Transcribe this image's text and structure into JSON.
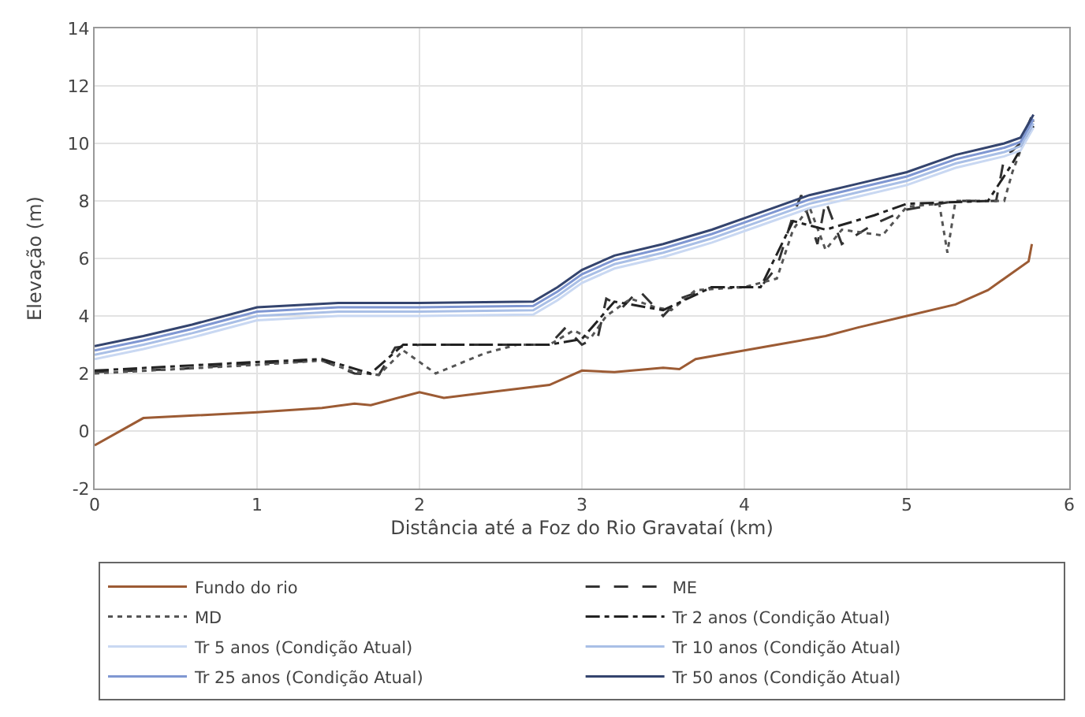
{
  "chart_data": {
    "type": "line",
    "xlabel": "Distância até a Foz do Rio Gravataí (km)",
    "ylabel": "Elevação (m)",
    "xlim": [
      0,
      6
    ],
    "xticks": [
      0,
      1,
      2,
      3,
      4,
      5,
      6
    ],
    "ylim": [
      -2,
      14
    ],
    "yticks": [
      -2,
      0,
      2,
      4,
      6,
      8,
      10,
      12,
      14
    ],
    "grid": true,
    "legend": "bottom",
    "marker": "none",
    "series": [
      {
        "name": "Fundo do rio",
        "color": "#9c5b34",
        "line_style": "solid",
        "x": [
          0,
          0.3,
          1,
          1.4,
          1.6,
          1.7,
          2,
          2.15,
          2.5,
          2.8,
          3,
          3.2,
          3.5,
          3.6,
          3.7,
          4,
          4.2,
          4.5,
          4.7,
          5,
          5.3,
          5.5,
          5.65,
          5.75,
          5.77
        ],
        "values": [
          -0.5,
          0.45,
          0.65,
          0.8,
          0.95,
          0.9,
          1.35,
          1.15,
          1.4,
          1.6,
          2.1,
          2.05,
          2.2,
          2.15,
          2.5,
          2.8,
          3,
          3.3,
          3.6,
          4,
          4.4,
          4.9,
          5.5,
          5.9,
          6.5
        ]
      },
      {
        "name": "ME",
        "color": "#333333",
        "line_style": "dashed",
        "x": [
          0,
          0.5,
          1,
          1.4,
          1.6,
          1.75,
          1.85,
          2,
          2.5,
          2.8,
          2.9,
          3,
          3.1,
          3.15,
          3.25,
          3.35,
          3.5,
          3.6,
          3.8,
          4.1,
          4.2,
          4.3,
          4.35,
          4.45,
          4.5,
          4.6,
          4.8,
          5,
          5.3,
          5.55,
          5.6,
          5.7,
          5.78
        ],
        "values": [
          2.05,
          2.15,
          2.35,
          2.45,
          2,
          1.95,
          2.9,
          3,
          3,
          3,
          3.6,
          3,
          3.3,
          4.6,
          4.3,
          4.9,
          4,
          4.6,
          5,
          5,
          5.7,
          7.5,
          8.2,
          6.5,
          8,
          6.5,
          7.2,
          7.7,
          8,
          8,
          9.5,
          10,
          11.1
        ]
      },
      {
        "name": "MD",
        "color": "#555555",
        "line_style": "dotted",
        "x": [
          0,
          1,
          1.4,
          1.6,
          1.75,
          1.9,
          2,
          2.1,
          2.4,
          2.6,
          2.8,
          2.95,
          3.05,
          3.15,
          3.3,
          3.45,
          3.55,
          3.7,
          4,
          4.2,
          4.3,
          4.4,
          4.5,
          4.6,
          4.85,
          5,
          5.2,
          5.25,
          5.3,
          5.6,
          5.65,
          5.75,
          5.78
        ],
        "values": [
          2,
          2.3,
          2.45,
          2.05,
          1.95,
          2.8,
          2.4,
          2,
          2.7,
          3,
          3,
          3.5,
          3.2,
          4,
          4.6,
          4.3,
          4.2,
          4.9,
          5,
          5.3,
          7,
          7.8,
          6.3,
          7,
          6.8,
          7.8,
          7.9,
          6.2,
          8,
          8,
          9,
          10.5,
          10.8
        ]
      },
      {
        "name": "Tr 2 anos (Condição Atual)",
        "color": "#222222",
        "line_style": "dashdot",
        "x": [
          0,
          1,
          1.4,
          1.7,
          1.9,
          2.8,
          3,
          3.2,
          3.5,
          3.8,
          4.1,
          4.3,
          4.5,
          4.8,
          5,
          5.5,
          5.65,
          5.78
        ],
        "values": [
          2.1,
          2.4,
          2.5,
          2,
          3,
          3,
          3.2,
          4.5,
          4.2,
          5,
          5,
          7.3,
          7,
          7.5,
          7.9,
          8,
          9.3,
          10.6
        ]
      },
      {
        "name": "Tr 5 anos (Condição Atual)",
        "color": "#c9d8f2",
        "line_style": "solid",
        "x": [
          0,
          0.3,
          0.6,
          1,
          1.5,
          2,
          2.7,
          2.85,
          3,
          3.2,
          3.5,
          3.8,
          4.1,
          4.4,
          4.7,
          5,
          5.3,
          5.6,
          5.7,
          5.78
        ],
        "values": [
          2.5,
          2.85,
          3.25,
          3.85,
          4,
          4,
          4.05,
          4.55,
          5.15,
          5.65,
          6.05,
          6.55,
          7.15,
          7.75,
          8.15,
          8.55,
          9.15,
          9.55,
          9.75,
          10.55
        ]
      },
      {
        "name": "Tr 10 anos (Condição Atual)",
        "color": "#a9bfe6",
        "line_style": "solid",
        "x": [
          0,
          0.3,
          0.6,
          1,
          1.5,
          2,
          2.7,
          2.85,
          3,
          3.2,
          3.5,
          3.8,
          4.1,
          4.4,
          4.7,
          5,
          5.3,
          5.6,
          5.7,
          5.78
        ],
        "values": [
          2.65,
          3,
          3.4,
          4,
          4.15,
          4.15,
          4.2,
          4.7,
          5.3,
          5.8,
          6.2,
          6.7,
          7.3,
          7.9,
          8.3,
          8.7,
          9.3,
          9.7,
          9.9,
          10.7
        ]
      },
      {
        "name": "Tr 25 anos (Condição Atual)",
        "color": "#7f97d2",
        "line_style": "solid",
        "x": [
          0,
          0.3,
          0.6,
          1,
          1.5,
          2,
          2.7,
          2.85,
          3,
          3.2,
          3.5,
          3.8,
          4.1,
          4.4,
          4.7,
          5,
          5.3,
          5.6,
          5.7,
          5.78
        ],
        "values": [
          2.8,
          3.15,
          3.55,
          4.15,
          4.3,
          4.3,
          4.35,
          4.85,
          5.45,
          5.95,
          6.35,
          6.85,
          7.45,
          8.05,
          8.45,
          8.85,
          9.45,
          9.85,
          10.05,
          10.85
        ]
      },
      {
        "name": "Tr 50 anos (Condição Atual)",
        "color": "#34446e",
        "line_style": "solid",
        "x": [
          0,
          0.3,
          0.6,
          1,
          1.5,
          2,
          2.7,
          2.85,
          3,
          3.2,
          3.5,
          3.8,
          4.1,
          4.4,
          4.7,
          5,
          5.3,
          5.6,
          5.7,
          5.78
        ],
        "values": [
          2.95,
          3.3,
          3.7,
          4.3,
          4.45,
          4.45,
          4.5,
          5,
          5.6,
          6.1,
          6.5,
          7,
          7.6,
          8.2,
          8.6,
          9,
          9.6,
          10,
          10.2,
          11
        ]
      }
    ]
  }
}
